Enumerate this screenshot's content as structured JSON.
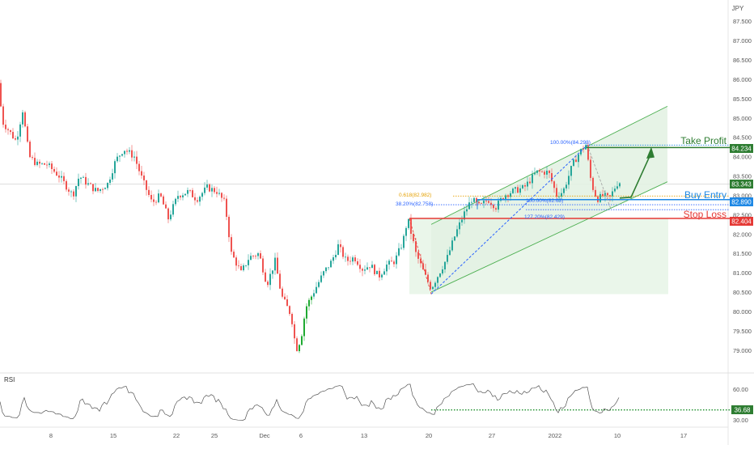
{
  "currency": "JPY",
  "colors": {
    "up": "#26a69a",
    "upBright": "#1faa32",
    "down": "#ef5350",
    "channel": "#4caf50",
    "channelFill": "#e8f5e9",
    "takeProfit": "#2e7d32",
    "buyEntry": "#1e88e5",
    "stopLoss": "#e53935",
    "fibGold": "#e5a000",
    "fibBlue": "#2962ff",
    "rsiLine": "#555555",
    "rsiDots": "#1b8f2a",
    "current": "#2e7d32"
  },
  "chart_data": {
    "type": "candlestick",
    "yrange": [
      78.6,
      87.9
    ],
    "price_ticks": [
      "87.500",
      "87.000",
      "86.500",
      "86.000",
      "85.500",
      "85.000",
      "84.500",
      "84.000",
      "83.500",
      "83.000",
      "82.500",
      "82.000",
      "81.500",
      "81.000",
      "80.500",
      "80.000",
      "79.500",
      "79.000"
    ],
    "x_labels": [
      "8",
      "15",
      "22",
      "25",
      "Dec",
      "6",
      "13",
      "20",
      "27",
      "2022",
      "10",
      "17"
    ],
    "levels": {
      "take_profit": {
        "label": "Take Profit",
        "price": "84.234"
      },
      "buy_entry": {
        "label": "Buy Entry",
        "price": "82.890"
      },
      "stop_loss": {
        "label": "Stop Loss",
        "price": "82.404"
      },
      "current": {
        "price": "83.343"
      }
    },
    "fib_labels": [
      "100.00%(84.298)",
      "0.618(82.982)",
      "38.20%(82.758)",
      "100.00%(82.63)",
      "127.20%(82.429)"
    ],
    "rsi": {
      "label": "RSI",
      "ticks": [
        "60.00",
        "30.00"
      ],
      "current": "36.68",
      "yrange": [
        20,
        70
      ]
    }
  }
}
